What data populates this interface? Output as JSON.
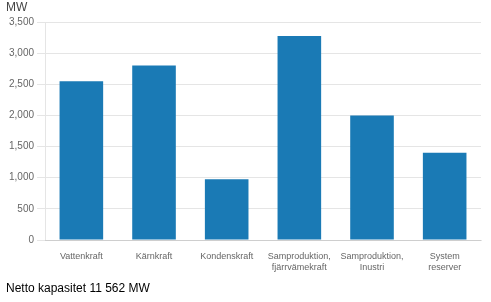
{
  "chart_data": {
    "type": "bar",
    "categories": [
      "Vattenkraft",
      "Kärnkraft",
      "Kondenskraft",
      "Samproduktion,\nfjärrvämekraft",
      "Samproduktion,\nInustri",
      "System\nreserver"
    ],
    "values": [
      2550,
      2800,
      975,
      3275,
      2000,
      1400
    ],
    "color": "#1a7ab5",
    "ylabel": "MW",
    "annotations": [
      "Netto kapasitet 11 562 MW"
    ],
    "ylim": [
      0,
      3500
    ],
    "yticks": [
      0,
      500,
      1000,
      1500,
      2000,
      2500,
      3000,
      3500
    ],
    "grid": true
  }
}
